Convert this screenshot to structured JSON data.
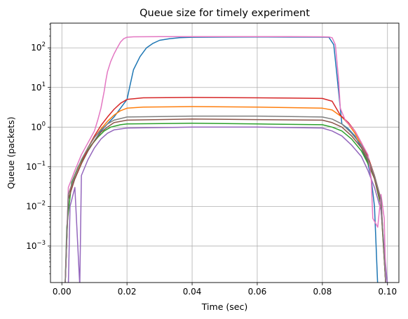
{
  "chart_data": {
    "type": "line",
    "title": "Queue size for timely experiment",
    "xlabel": "Time (sec)",
    "ylabel": "Queue (packets)",
    "yscale": "log",
    "xlim": [
      -0.0035,
      0.1035
    ],
    "ylim": [
      0.00012,
      420
    ],
    "grid": true,
    "xticks": [
      0.0,
      0.02,
      0.04,
      0.06,
      0.08,
      0.1
    ],
    "xtick_labels": [
      "0.00",
      "0.02",
      "0.04",
      "0.06",
      "0.08",
      "0.10"
    ],
    "yticks": [
      0.001,
      0.01,
      0.1,
      1,
      10,
      100
    ],
    "ytick_bases": [
      "10",
      "10",
      "10",
      "10",
      "10",
      "10"
    ],
    "ytick_exponents": [
      "−3",
      "−2",
      "−1",
      "0",
      "1",
      "2"
    ],
    "series": [
      {
        "color": "#1f77b4",
        "values": [
          [
            0.001,
            0.0001
          ],
          [
            0.002,
            0.02
          ],
          [
            0.004,
            0.05
          ],
          [
            0.006,
            0.12
          ],
          [
            0.008,
            0.25
          ],
          [
            0.01,
            0.45
          ],
          [
            0.012,
            0.8
          ],
          [
            0.014,
            1.2
          ],
          [
            0.016,
            1.8
          ],
          [
            0.018,
            3
          ],
          [
            0.02,
            5
          ],
          [
            0.021,
            12
          ],
          [
            0.022,
            28
          ],
          [
            0.024,
            60
          ],
          [
            0.026,
            100
          ],
          [
            0.028,
            130
          ],
          [
            0.03,
            155
          ],
          [
            0.033,
            170
          ],
          [
            0.036,
            180
          ],
          [
            0.04,
            185
          ],
          [
            0.05,
            187
          ],
          [
            0.06,
            188
          ],
          [
            0.07,
            187
          ],
          [
            0.08,
            186
          ],
          [
            0.082,
            185
          ],
          [
            0.0835,
            120
          ],
          [
            0.0845,
            20
          ],
          [
            0.086,
            1.2
          ],
          [
            0.088,
            0.9
          ],
          [
            0.09,
            0.6
          ],
          [
            0.092,
            0.3
          ],
          [
            0.094,
            0.12
          ],
          [
            0.095,
            0.05
          ],
          [
            0.096,
            0.01
          ],
          [
            0.097,
            0.0001
          ]
        ]
      },
      {
        "color": "#ff7f0e",
        "values": [
          [
            0.001,
            0.0001
          ],
          [
            0.002,
            0.02
          ],
          [
            0.004,
            0.06
          ],
          [
            0.006,
            0.14
          ],
          [
            0.008,
            0.3
          ],
          [
            0.01,
            0.55
          ],
          [
            0.012,
            0.9
          ],
          [
            0.014,
            1.4
          ],
          [
            0.016,
            2
          ],
          [
            0.018,
            2.6
          ],
          [
            0.02,
            3
          ],
          [
            0.025,
            3.2
          ],
          [
            0.04,
            3.3
          ],
          [
            0.06,
            3.2
          ],
          [
            0.07,
            3.1
          ],
          [
            0.08,
            3
          ],
          [
            0.083,
            2.7
          ],
          [
            0.086,
            1.8
          ],
          [
            0.088,
            1.2
          ],
          [
            0.09,
            0.7
          ],
          [
            0.092,
            0.35
          ],
          [
            0.094,
            0.15
          ],
          [
            0.096,
            0.05
          ],
          [
            0.098,
            0.01
          ],
          [
            0.0995,
            0.0001
          ]
        ]
      },
      {
        "color": "#2ca02c",
        "values": [
          [
            0.001,
            0.0001
          ],
          [
            0.0015,
            0.003
          ],
          [
            0.003,
            0.04
          ],
          [
            0.005,
            0.1
          ],
          [
            0.007,
            0.2
          ],
          [
            0.009,
            0.35
          ],
          [
            0.011,
            0.55
          ],
          [
            0.013,
            0.8
          ],
          [
            0.015,
            1
          ],
          [
            0.018,
            1.15
          ],
          [
            0.02,
            1.2
          ],
          [
            0.04,
            1.25
          ],
          [
            0.06,
            1.2
          ],
          [
            0.08,
            1.15
          ],
          [
            0.083,
            1
          ],
          [
            0.086,
            0.8
          ],
          [
            0.089,
            0.5
          ],
          [
            0.092,
            0.25
          ],
          [
            0.094,
            0.12
          ],
          [
            0.096,
            0.05
          ],
          [
            0.098,
            0.01
          ],
          [
            0.0995,
            0.0001
          ]
        ]
      },
      {
        "color": "#d62728",
        "values": [
          [
            0.001,
            0.0001
          ],
          [
            0.002,
            0.02
          ],
          [
            0.004,
            0.05
          ],
          [
            0.006,
            0.12
          ],
          [
            0.008,
            0.3
          ],
          [
            0.01,
            0.6
          ],
          [
            0.012,
            1.1
          ],
          [
            0.014,
            1.8
          ],
          [
            0.016,
            2.8
          ],
          [
            0.018,
            4
          ],
          [
            0.02,
            5
          ],
          [
            0.025,
            5.5
          ],
          [
            0.04,
            5.6
          ],
          [
            0.06,
            5.5
          ],
          [
            0.07,
            5.4
          ],
          [
            0.08,
            5.3
          ],
          [
            0.083,
            4.5
          ],
          [
            0.0855,
            2
          ],
          [
            0.088,
            1.3
          ],
          [
            0.09,
            0.8
          ],
          [
            0.092,
            0.4
          ],
          [
            0.094,
            0.18
          ],
          [
            0.096,
            0.06
          ],
          [
            0.098,
            0.015
          ],
          [
            0.0995,
            0.0001
          ]
        ]
      },
      {
        "color": "#9467bd",
        "values": [
          [
            0.002,
            0.0001
          ],
          [
            0.0025,
            0.01
          ],
          [
            0.004,
            0.03
          ],
          [
            0.0055,
            0.0001
          ],
          [
            0.006,
            0.06
          ],
          [
            0.008,
            0.15
          ],
          [
            0.01,
            0.3
          ],
          [
            0.012,
            0.5
          ],
          [
            0.014,
            0.7
          ],
          [
            0.016,
            0.85
          ],
          [
            0.02,
            0.95
          ],
          [
            0.04,
            1
          ],
          [
            0.06,
            1
          ],
          [
            0.08,
            0.95
          ],
          [
            0.083,
            0.8
          ],
          [
            0.086,
            0.6
          ],
          [
            0.089,
            0.35
          ],
          [
            0.092,
            0.18
          ],
          [
            0.094,
            0.08
          ],
          [
            0.096,
            0.03
          ],
          [
            0.098,
            0.008
          ],
          [
            0.1,
            0.0001
          ]
        ]
      },
      {
        "color": "#8c564b",
        "values": [
          [
            0.001,
            0.0001
          ],
          [
            0.002,
            0.015
          ],
          [
            0.004,
            0.05
          ],
          [
            0.006,
            0.12
          ],
          [
            0.008,
            0.25
          ],
          [
            0.01,
            0.45
          ],
          [
            0.012,
            0.75
          ],
          [
            0.014,
            1
          ],
          [
            0.016,
            1.3
          ],
          [
            0.02,
            1.5
          ],
          [
            0.04,
            1.6
          ],
          [
            0.06,
            1.55
          ],
          [
            0.08,
            1.5
          ],
          [
            0.083,
            1.3
          ],
          [
            0.086,
            1
          ],
          [
            0.089,
            0.6
          ],
          [
            0.092,
            0.3
          ],
          [
            0.094,
            0.14
          ],
          [
            0.096,
            0.05
          ],
          [
            0.098,
            0.012
          ],
          [
            0.0995,
            0.0001
          ]
        ]
      },
      {
        "color": "#e377c2",
        "values": [
          [
            0.001,
            0.0001
          ],
          [
            0.002,
            0.03
          ],
          [
            0.004,
            0.08
          ],
          [
            0.006,
            0.2
          ],
          [
            0.008,
            0.4
          ],
          [
            0.01,
            0.8
          ],
          [
            0.011,
            1.5
          ],
          [
            0.012,
            3
          ],
          [
            0.013,
            8
          ],
          [
            0.0135,
            15
          ],
          [
            0.014,
            25
          ],
          [
            0.015,
            45
          ],
          [
            0.016,
            70
          ],
          [
            0.017,
            100
          ],
          [
            0.018,
            140
          ],
          [
            0.019,
            170
          ],
          [
            0.02,
            185
          ],
          [
            0.022,
            190
          ],
          [
            0.03,
            192
          ],
          [
            0.05,
            192
          ],
          [
            0.07,
            191
          ],
          [
            0.08,
            190
          ],
          [
            0.082,
            188
          ],
          [
            0.083,
            180
          ],
          [
            0.084,
            120
          ],
          [
            0.085,
            15
          ],
          [
            0.0855,
            3
          ],
          [
            0.087,
            1.5
          ],
          [
            0.09,
            0.8
          ],
          [
            0.092,
            0.4
          ],
          [
            0.094,
            0.2
          ],
          [
            0.095,
            0.05
          ],
          [
            0.0955,
            0.005
          ],
          [
            0.097,
            0.003
          ],
          [
            0.098,
            0.02
          ],
          [
            0.099,
            0.005
          ],
          [
            0.0995,
            0.0001
          ]
        ]
      },
      {
        "color": "#7f7f7f",
        "values": [
          [
            0.001,
            0.0001
          ],
          [
            0.002,
            0.02
          ],
          [
            0.004,
            0.06
          ],
          [
            0.006,
            0.15
          ],
          [
            0.008,
            0.3
          ],
          [
            0.01,
            0.55
          ],
          [
            0.012,
            0.85
          ],
          [
            0.014,
            1.2
          ],
          [
            0.016,
            1.5
          ],
          [
            0.02,
            1.8
          ],
          [
            0.04,
            1.9
          ],
          [
            0.06,
            1.9
          ],
          [
            0.08,
            1.8
          ],
          [
            0.083,
            1.6
          ],
          [
            0.086,
            1.2
          ],
          [
            0.089,
            0.7
          ],
          [
            0.092,
            0.35
          ],
          [
            0.094,
            0.16
          ],
          [
            0.096,
            0.06
          ],
          [
            0.098,
            0.015
          ],
          [
            0.0995,
            0.0001
          ]
        ]
      }
    ]
  }
}
